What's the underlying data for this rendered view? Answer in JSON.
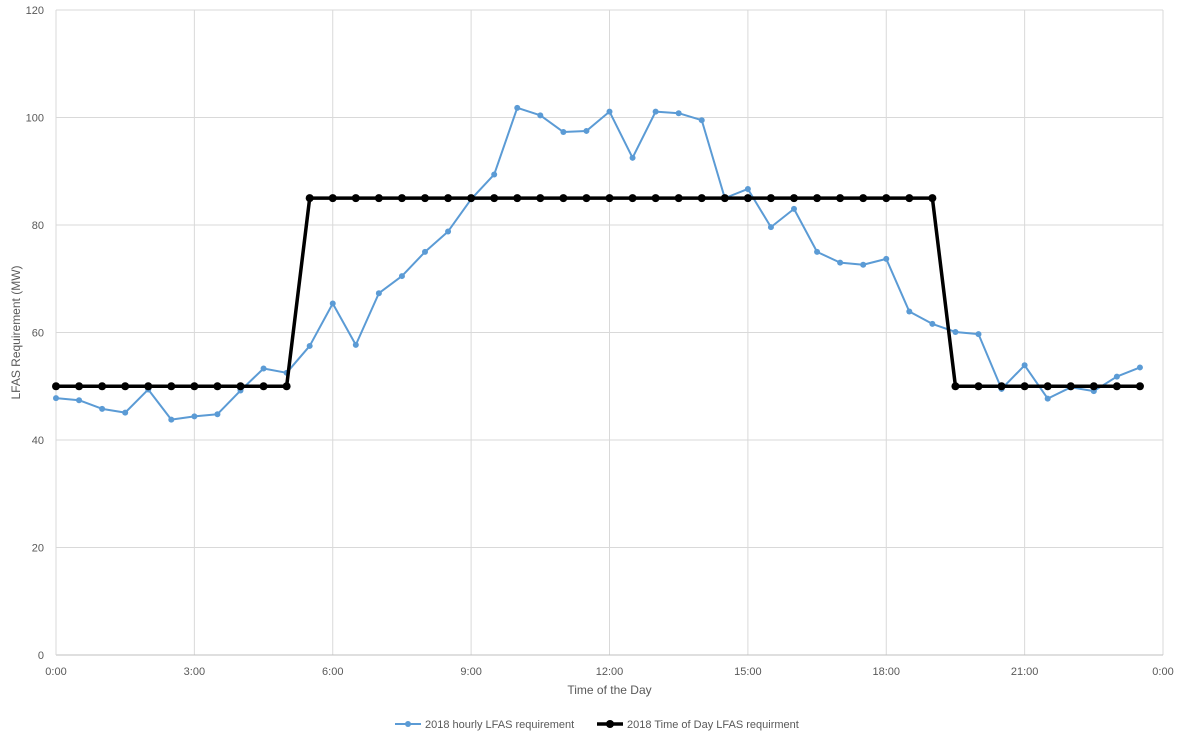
{
  "chart_data": {
    "type": "line",
    "title": "",
    "xlabel": "Time of the Day",
    "ylabel": "LFAS Requirement  (MW)",
    "xlim": [
      0,
      24
    ],
    "ylim": [
      0,
      120
    ],
    "x_ticks": [
      0,
      3,
      6,
      9,
      12,
      15,
      18,
      21,
      24
    ],
    "x_tick_labels": [
      "0:00",
      "3:00",
      "6:00",
      "9:00",
      "12:00",
      "15:00",
      "18:00",
      "21:00",
      "0:00"
    ],
    "y_ticks": [
      0,
      20,
      40,
      60,
      80,
      100,
      120
    ],
    "y_tick_labels": [
      "0",
      "20",
      "40",
      "60",
      "80",
      "100",
      "120"
    ],
    "grid": true,
    "legend_position": "bottom-center",
    "series": [
      {
        "name": "2018 hourly LFAS requirement",
        "color": "#5b9bd5",
        "x": [
          0,
          0.5,
          1,
          1.5,
          2,
          2.5,
          3,
          3.5,
          4,
          4.5,
          5,
          5.5,
          6,
          6.5,
          7,
          7.5,
          8,
          8.5,
          9,
          9.5,
          10,
          10.5,
          11,
          11.5,
          12,
          12.5,
          13,
          13.5,
          14,
          14.5,
          15,
          15.5,
          16,
          16.5,
          17,
          17.5,
          18,
          18.5,
          19,
          19.5,
          20,
          20.5,
          21,
          21.5,
          22,
          22.5,
          23,
          23.5
        ],
        "values": [
          47.8,
          47.4,
          45.8,
          45.1,
          49.4,
          43.8,
          44.4,
          44.8,
          49.2,
          53.3,
          52.5,
          57.5,
          65.4,
          57.7,
          67.3,
          70.5,
          75.0,
          78.8,
          84.8,
          89.4,
          101.8,
          100.4,
          97.3,
          97.5,
          101.1,
          92.5,
          101.1,
          100.8,
          99.5,
          85.0,
          86.7,
          79.6,
          83.0,
          75.0,
          73.0,
          72.6,
          73.7,
          63.9,
          61.6,
          60.1,
          59.7,
          49.5,
          53.9,
          47.7,
          49.8,
          49.1,
          51.8,
          53.5
        ]
      },
      {
        "name": "2018 Time of Day LFAS requirment",
        "color": "#000000",
        "x": [
          0,
          0.5,
          1,
          1.5,
          2,
          2.5,
          3,
          3.5,
          4,
          4.5,
          5,
          5.5,
          6,
          6.5,
          7,
          7.5,
          8,
          8.5,
          9,
          9.5,
          10,
          10.5,
          11,
          11.5,
          12,
          12.5,
          13,
          13.5,
          14,
          14.5,
          15,
          15.5,
          16,
          16.5,
          17,
          17.5,
          18,
          18.5,
          19,
          19.5,
          20,
          20.5,
          21,
          21.5,
          22,
          22.5,
          23,
          23.5
        ],
        "values": [
          50,
          50,
          50,
          50,
          50,
          50,
          50,
          50,
          50,
          50,
          50,
          85,
          85,
          85,
          85,
          85,
          85,
          85,
          85,
          85,
          85,
          85,
          85,
          85,
          85,
          85,
          85,
          85,
          85,
          85,
          85,
          85,
          85,
          85,
          85,
          85,
          85,
          85,
          85,
          50,
          50,
          50,
          50,
          50,
          50,
          50,
          50,
          50
        ]
      }
    ]
  }
}
